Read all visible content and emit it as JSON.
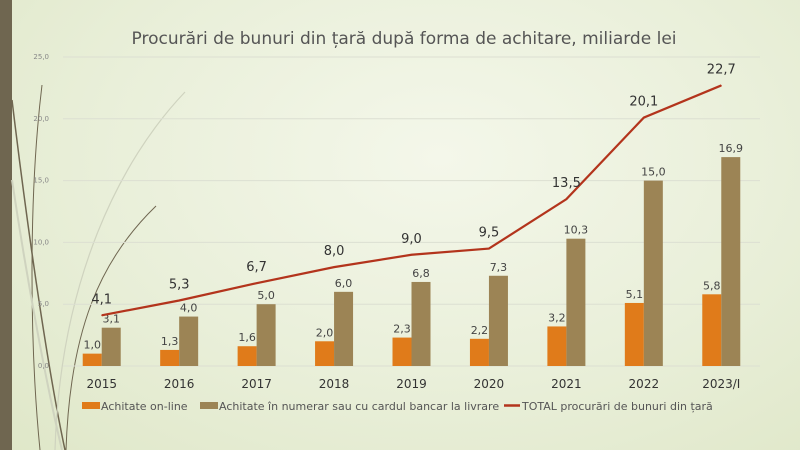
{
  "chart_data": {
    "type": "bar",
    "title": "Procurări de bunuri din țară după forma de achitare, miliarde lei",
    "categories": [
      "2015",
      "2016",
      "2017",
      "2018",
      "2019",
      "2020",
      "2021",
      "2022",
      "2023/I"
    ],
    "ylim": [
      0,
      25
    ],
    "yticks": [
      "0,0",
      "5,0",
      "10,0",
      "15,0",
      "20,0",
      "25,0"
    ],
    "grid": true,
    "legend_position": "bottom",
    "series": [
      {
        "name": "Achitate on-line",
        "type": "bar",
        "color": "#e07b1a",
        "values": [
          1.0,
          1.3,
          1.6,
          2.0,
          2.3,
          2.2,
          3.2,
          5.1,
          5.8
        ],
        "labels": [
          "1,0",
          "1,3",
          "1,6",
          "2,0",
          "2,3",
          "2,2",
          "3,2",
          "5,1",
          "5,8"
        ]
      },
      {
        "name": "Achitate în numerar sau cu cardul bancar la livrare",
        "type": "bar",
        "color": "#9c8455",
        "values": [
          3.1,
          4.0,
          5.0,
          6.0,
          6.8,
          7.3,
          10.3,
          15.0,
          16.9
        ],
        "labels": [
          "3,1",
          "4,0",
          "5,0",
          "6,0",
          "6,8",
          "7,3",
          "10,3",
          "15,0",
          "16,9"
        ]
      },
      {
        "name": "TOTAL procurări de bunuri din țară",
        "type": "line",
        "color": "#b3341c",
        "values": [
          4.1,
          5.3,
          6.7,
          8.0,
          9.0,
          9.5,
          13.5,
          20.1,
          22.7
        ],
        "labels": [
          "4,1",
          "5,3",
          "6,7",
          "8,0",
          "9,0",
          "9,5",
          "13,5",
          "20,1",
          "22,7"
        ]
      }
    ]
  }
}
